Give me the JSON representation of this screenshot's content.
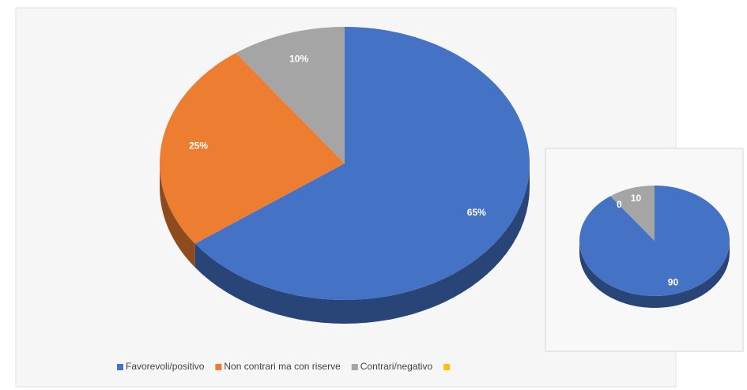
{
  "chart_data": [
    {
      "type": "pie",
      "categories": [
        "Favorevoli/positivo",
        "Non contrari ma con riserve",
        "Contrari/negativo",
        null
      ],
      "values": [
        65,
        25,
        10,
        null
      ],
      "value_labels": [
        "65%",
        "25%",
        "10%",
        null
      ],
      "colors": [
        "#4472c4",
        "#ed7d31",
        "#a5a5a5",
        "#ffc000"
      ],
      "legend": "bottom"
    },
    {
      "type": "pie",
      "values": [
        90,
        0,
        10
      ],
      "colors": [
        "#4472c4",
        "#ed7d31",
        "#a5a5a5"
      ]
    }
  ]
}
